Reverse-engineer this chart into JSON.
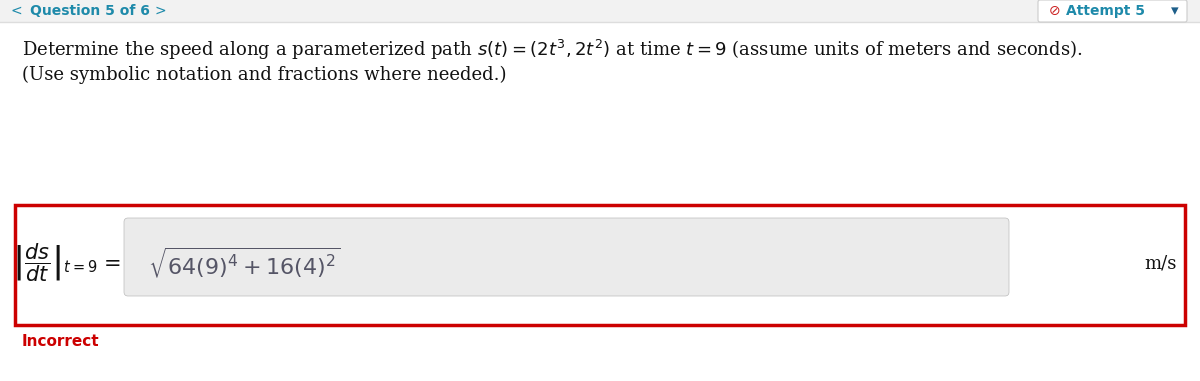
{
  "bg_color": "#ffffff",
  "header_bg": "#f0f0f0",
  "header_text": "Question 5 of 6",
  "attempt_text": "Attempt 5",
  "main_text_line1_plain": "Determine the speed along a parameterized path ",
  "main_text_line1_math": "$s(t) = (2t^3, 2t^2)$",
  "main_text_line1_after": " at time ",
  "main_text_line1_t": "$t = 9$",
  "main_text_line1_end": " (assume units of meters and seconds).",
  "main_text_line2": "(Use symbolic notation and fractions where needed.)",
  "units_text": "m/s",
  "incorrect_text": "Incorrect",
  "incorrect_color": "#cc0000",
  "header_color": "#1e8aaa",
  "box_border_color": "#cc0000",
  "answer_box_bg": "#ebebeb",
  "top_bar_color": "#dddddd",
  "attempt_icon_color": "#cc2222",
  "attempt_arrow_color": "#1e5f8a"
}
